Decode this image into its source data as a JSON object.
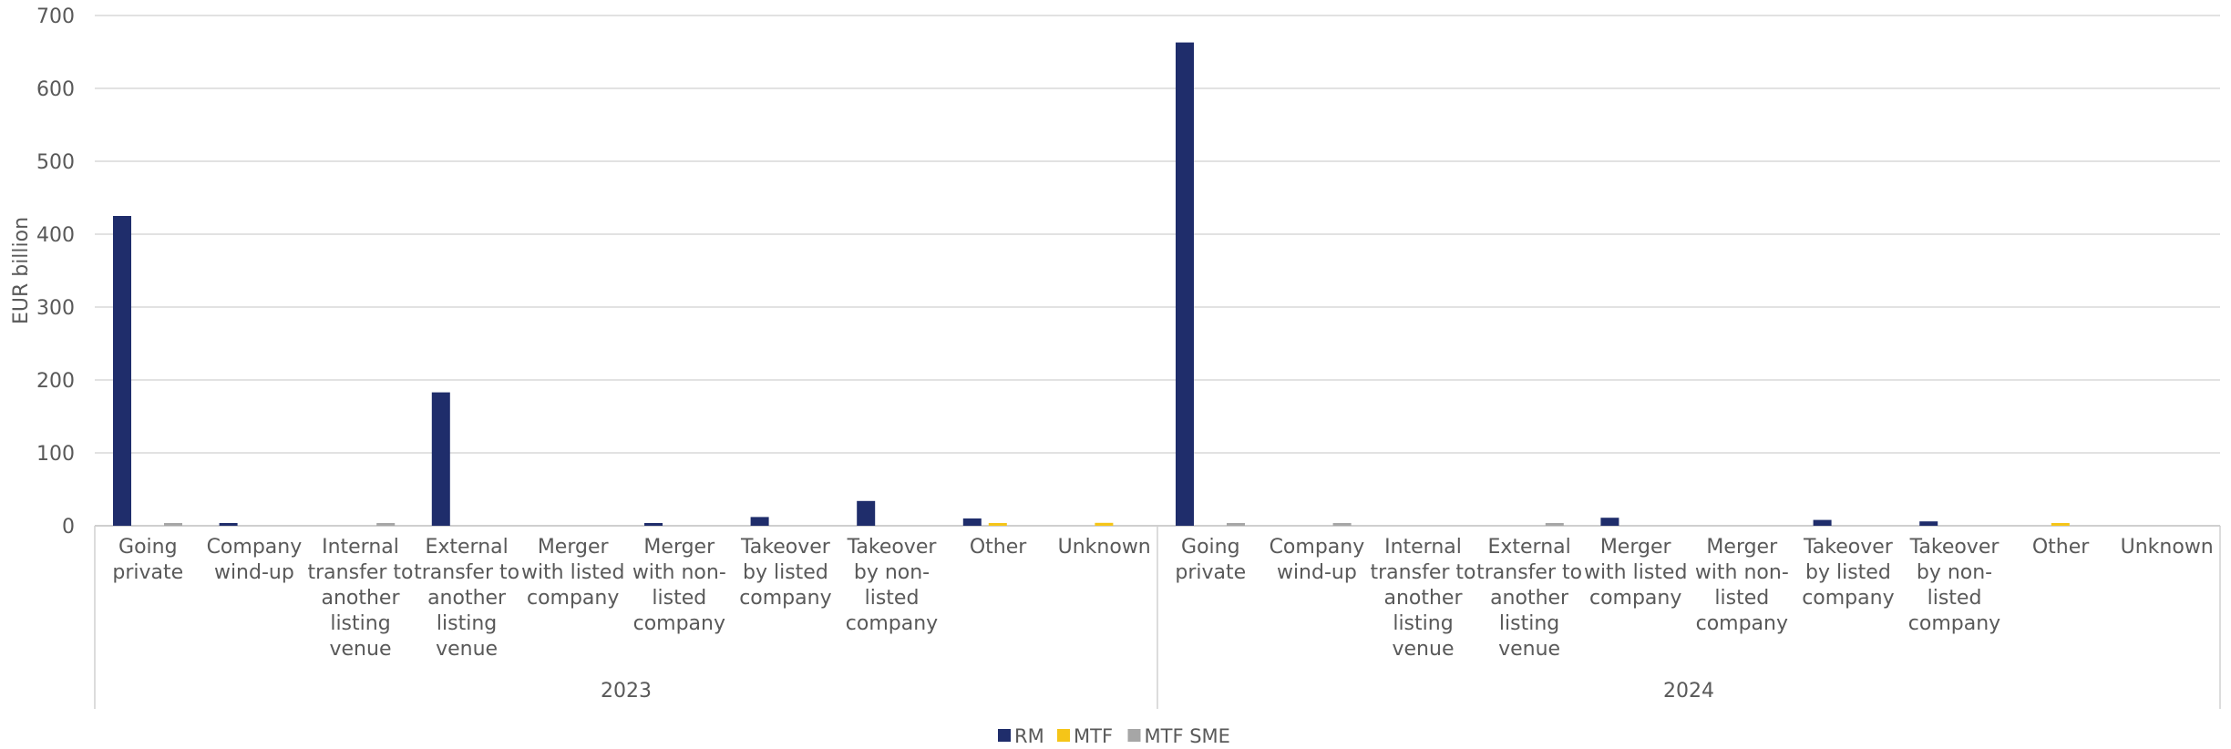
{
  "chart_data": {
    "type": "bar",
    "ylabel": "EUR billion",
    "ylim": [
      0,
      700
    ],
    "yticks": [
      0,
      100,
      200,
      300,
      400,
      500,
      600,
      700
    ],
    "grid": true,
    "legend_position": "bottom",
    "groups": [
      {
        "label": "2023",
        "categories": [
          [
            "Going",
            "private"
          ],
          [
            "Company",
            "wind-up"
          ],
          [
            "Internal",
            "transfer to",
            "another",
            "listing",
            "venue"
          ],
          [
            "External",
            "transfer to",
            "another",
            "listing",
            "venue"
          ],
          [
            "Merger",
            "with listed",
            "company"
          ],
          [
            "Merger",
            "with non-",
            "listed",
            "company"
          ],
          [
            "Takeover",
            "by listed",
            "company"
          ],
          [
            "Takeover",
            "by non-",
            "listed",
            "company"
          ],
          [
            "Other"
          ],
          [
            "Unknown"
          ]
        ]
      },
      {
        "label": "2024",
        "categories": [
          [
            "Going",
            "private"
          ],
          [
            "Company",
            "wind-up"
          ],
          [
            "Internal",
            "transfer to",
            "another",
            "listing",
            "venue"
          ],
          [
            "External",
            "transfer to",
            "another",
            "listing",
            "venue"
          ],
          [
            "Merger",
            "with listed",
            "company"
          ],
          [
            "Merger",
            "with non-",
            "listed",
            "company"
          ],
          [
            "Takeover",
            "by listed",
            "company"
          ],
          [
            "Takeover",
            "by non-",
            "listed",
            "company"
          ],
          [
            "Other"
          ],
          [
            "Unknown"
          ]
        ]
      }
    ],
    "series": [
      {
        "name": "RM",
        "color": "#1f2d6b",
        "values": [
          [
            425,
            2,
            0,
            183,
            0,
            2,
            12,
            34,
            10,
            0
          ],
          [
            663,
            0,
            0,
            0,
            11,
            0,
            8,
            6,
            0,
            0
          ]
        ]
      },
      {
        "name": "MTF",
        "color": "#f5c518",
        "values": [
          [
            0,
            0,
            0,
            0,
            0,
            0,
            0,
            0,
            1,
            4
          ],
          [
            0,
            0,
            0,
            0,
            0,
            0,
            0,
            0,
            2,
            0
          ]
        ]
      },
      {
        "name": "MTF SME",
        "color": "#a6a6a6",
        "values": [
          [
            1,
            0,
            1,
            0,
            0,
            0,
            0,
            0,
            0,
            0
          ],
          [
            1,
            1,
            0,
            1,
            0,
            0,
            0,
            0,
            0,
            0
          ]
        ]
      }
    ]
  }
}
